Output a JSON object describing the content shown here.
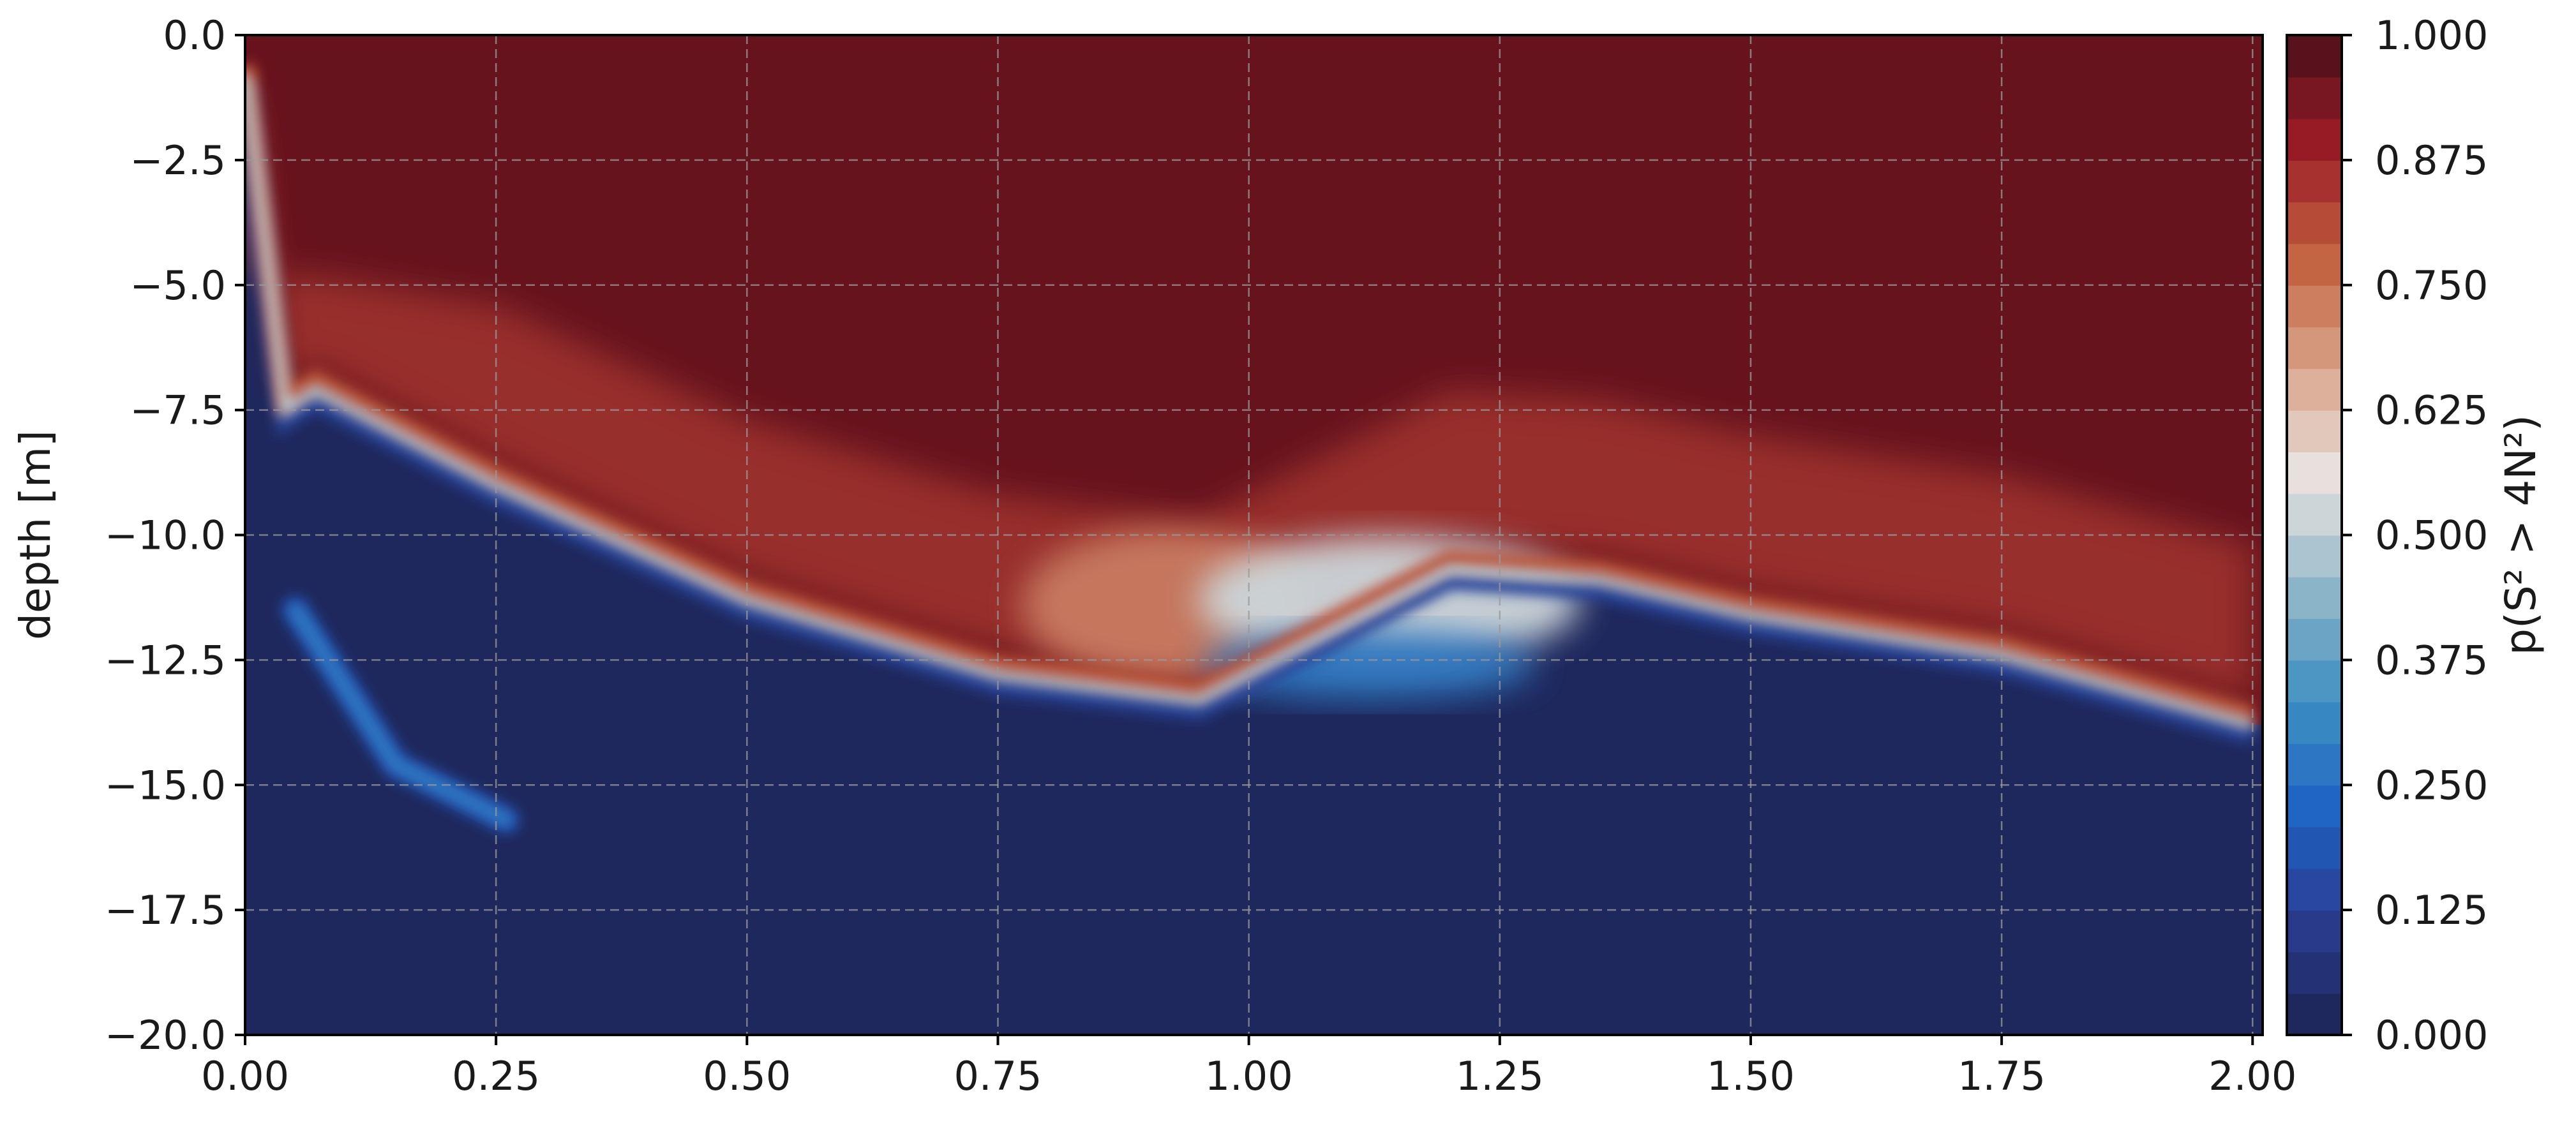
{
  "chart_data": {
    "type": "heatmap",
    "title": "",
    "xlabel": "",
    "ylabel": "depth [m]",
    "xlim": [
      0.0,
      2.01
    ],
    "ylim": [
      -20.0,
      0.0
    ],
    "grid": true,
    "x_ticks": [
      "0.00",
      "0.25",
      "0.50",
      "0.75",
      "1.00",
      "1.25",
      "1.50",
      "1.75",
      "2.00"
    ],
    "x_tick_values": [
      0.0,
      0.25,
      0.5,
      0.75,
      1.0,
      1.25,
      1.5,
      1.75,
      2.0
    ],
    "y_ticks": [
      "0.0",
      "−2.5",
      "−5.0",
      "−7.5",
      "−10.0",
      "−12.5",
      "−15.0",
      "−17.5",
      "−20.0"
    ],
    "y_tick_values": [
      0.0,
      -2.5,
      -5.0,
      -7.5,
      -10.0,
      -12.5,
      -15.0,
      -17.5,
      -20.0
    ],
    "colorbar": {
      "label": "p(S² > 4N²)",
      "range": [
        0.0,
        1.0
      ],
      "levels": 24,
      "ticks": [
        "0.000",
        "0.125",
        "0.250",
        "0.375",
        "0.500",
        "0.625",
        "0.750",
        "0.875",
        "1.000"
      ],
      "tick_values": [
        0.0,
        0.125,
        0.25,
        0.375,
        0.5,
        0.625,
        0.75,
        0.875,
        1.0
      ],
      "colormap_stops": [
        "#1d2452",
        "#2a3b8f",
        "#1f62c4",
        "#3d8fc3",
        "#8fb6c8",
        "#e8e4e1",
        "#d9a48a",
        "#c2603e",
        "#9b1c26",
        "#4a0e1a"
      ]
    },
    "field_description": {
      "interface_depth": [
        {
          "x": 0.0,
          "depth": -0.8
        },
        {
          "x": 0.04,
          "depth": -7.5
        },
        {
          "x": 0.07,
          "depth": -7.1
        },
        {
          "x": 0.25,
          "depth": -9.0
        },
        {
          "x": 0.5,
          "depth": -11.3
        },
        {
          "x": 0.75,
          "depth": -12.8
        },
        {
          "x": 0.95,
          "depth": -13.3
        },
        {
          "x": 1.2,
          "depth": -10.7
        },
        {
          "x": 1.35,
          "depth": -10.9
        },
        {
          "x": 1.5,
          "depth": -11.6
        },
        {
          "x": 1.75,
          "depth": -12.4
        },
        {
          "x": 2.0,
          "depth": -13.8
        }
      ],
      "secondary_plume": [
        {
          "x": 0.05,
          "depth": -11.5
        },
        {
          "x": 0.15,
          "depth": -14.6
        },
        {
          "x": 0.26,
          "depth": -15.7
        }
      ]
    }
  }
}
